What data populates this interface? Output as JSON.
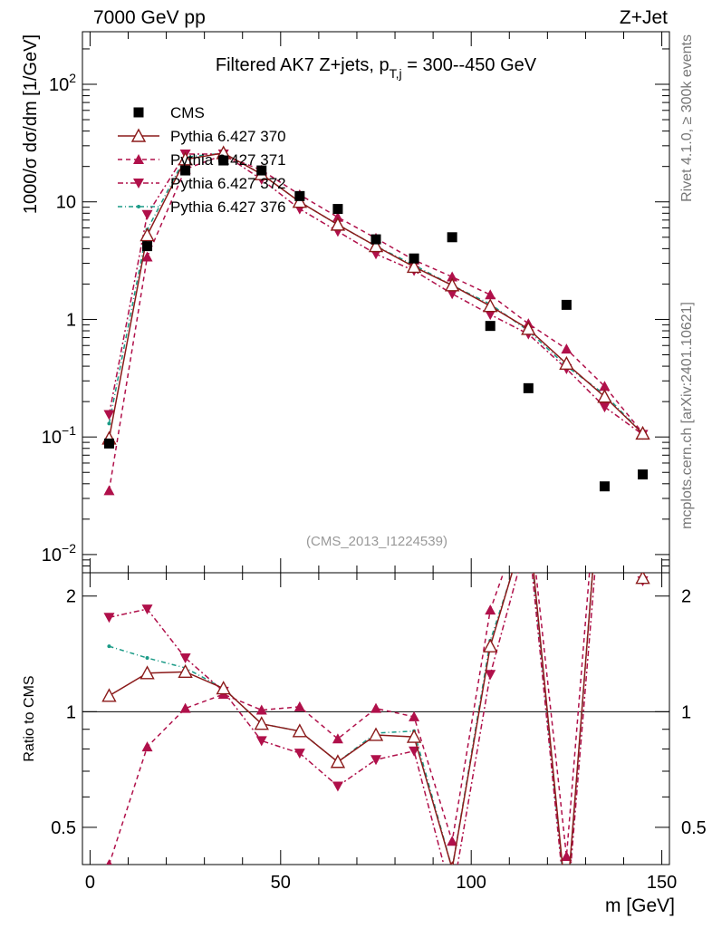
{
  "header": {
    "left": "7000 GeV pp",
    "right": "Z+Jet",
    "side_top": "Rivet 4.1.0, ≥ 300k events",
    "side_bottom": "mcplots.cern.ch [arXiv:2401.10621]",
    "analysis": "(CMS_2013_I1224539)"
  },
  "chart_data": [
    {
      "type": "line",
      "title": "Filtered AK7 Z+jets, p_T,j = 300--450 GeV",
      "title_main": "Filtered AK7 Z+jets, p",
      "title_sub": "T,j",
      "title_tail": " = 300--450 GeV",
      "xlabel": "m [GeV]",
      "ylabel": "1000/σ  dσ/dm [1/GeV]",
      "xlim": [
        -2,
        152
      ],
      "ylim": [
        0.007,
        280
      ],
      "yscale": "log",
      "x_ticks": [
        "0",
        "50",
        "100",
        "150"
      ],
      "y_ticks": [
        "10^-2",
        "10^-1",
        "1",
        "10",
        "10^2"
      ],
      "x": [
        5,
        15,
        25,
        35,
        45,
        55,
        65,
        75,
        85,
        95,
        105,
        115,
        125,
        135,
        145
      ],
      "series": [
        {
          "name": "CMS",
          "values": [
            0.088,
            4.2,
            18.5,
            22.5,
            18.5,
            11.2,
            8.7,
            4.8,
            3.3,
            5.0,
            0.88,
            0.26,
            1.33,
            0.038,
            0.048
          ]
        },
        {
          "name": "Pythia 6.427 370",
          "values": [
            0.097,
            5.2,
            23.0,
            26.0,
            17.2,
            10.0,
            6.4,
            4.2,
            2.8,
            1.95,
            1.3,
            0.83,
            0.42,
            0.22,
            0.107
          ]
        },
        {
          "name": "Pythia 6.427 371",
          "values": [
            0.035,
            3.4,
            19.0,
            25.0,
            18.6,
            11.5,
            7.4,
            4.9,
            3.2,
            2.3,
            1.62,
            0.92,
            0.56,
            0.27,
            0.108
          ]
        },
        {
          "name": "Pythia 6.427 372",
          "values": [
            0.155,
            7.8,
            25.5,
            25.5,
            15.5,
            8.7,
            5.6,
            3.6,
            2.6,
            1.65,
            1.1,
            0.75,
            0.38,
            0.18,
            0.105
          ]
        },
        {
          "name": "Pythia 6.427 376",
          "values": [
            0.13,
            5.8,
            24.0,
            26.0,
            17.2,
            10.0,
            6.4,
            4.2,
            2.9,
            1.95,
            1.35,
            0.8,
            0.4,
            0.23,
            0.107
          ]
        }
      ]
    },
    {
      "type": "line",
      "ylabel": "Ratio to CMS",
      "ylim": [
        0.4,
        2.3
      ],
      "yscale": "log",
      "y_ticks": [
        "0.5",
        "1",
        "2"
      ],
      "series": [
        {
          "name": "Pythia 6.427 370",
          "values": [
            1.1,
            1.26,
            1.27,
            1.15,
            0.93,
            0.89,
            0.74,
            0.87,
            0.86,
            0.39,
            1.48,
            3.2,
            0.31,
            5.8,
            2.23
          ]
        },
        {
          "name": "Pythia 6.427 371",
          "values": [
            0.4,
            0.81,
            1.02,
            1.11,
            1.01,
            1.03,
            0.85,
            1.02,
            0.97,
            0.46,
            1.84,
            3.5,
            0.42,
            7.1,
            2.25
          ]
        },
        {
          "name": "Pythia 6.427 372",
          "values": [
            1.76,
            1.85,
            1.38,
            1.13,
            0.84,
            0.78,
            0.64,
            0.75,
            0.79,
            0.33,
            1.25,
            2.9,
            0.29,
            4.7,
            2.19
          ]
        },
        {
          "name": "Pythia 6.427 376",
          "values": [
            1.48,
            1.38,
            1.3,
            1.15,
            0.93,
            0.89,
            0.74,
            0.88,
            0.89,
            0.39,
            1.53,
            3.1,
            0.3,
            6.0,
            2.23
          ]
        }
      ]
    }
  ],
  "legend": [
    {
      "label": "CMS",
      "color": "#000000",
      "marker": "square",
      "dash": ""
    },
    {
      "label": "Pythia 6.427 370",
      "color": "#8b1a1a",
      "marker": "open-triangle-up",
      "dash": ""
    },
    {
      "label": "Pythia 6.427 371",
      "color": "#b0104a",
      "marker": "triangle-up",
      "dash": "5,4"
    },
    {
      "label": "Pythia 6.427 372",
      "color": "#b0104a",
      "marker": "triangle-down",
      "dash": "6,3,2,3"
    },
    {
      "label": "Pythia 6.427 376",
      "color": "#1a9a86",
      "marker": "dot",
      "dash": "5,3,1,3"
    }
  ]
}
